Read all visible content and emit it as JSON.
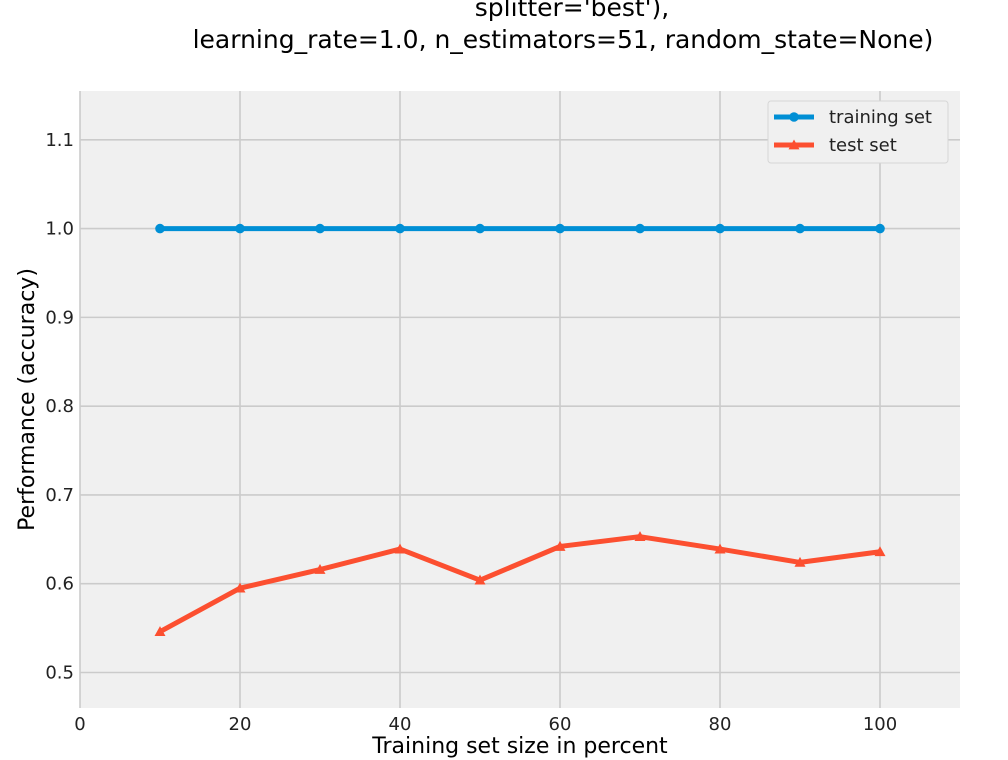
{
  "chart_data": {
    "type": "line",
    "title_lines": [
      "splitter='best'),",
      "learning_rate=1.0, n_estimators=51, random_state=None)"
    ],
    "xlabel": "Training set size in percent",
    "ylabel": "Performance (accuracy)",
    "xlim": [
      0,
      110
    ],
    "ylim": [
      0.46,
      1.155
    ],
    "x_ticks": [
      0,
      20,
      40,
      60,
      80,
      100
    ],
    "y_ticks": [
      0.5,
      0.6,
      0.7,
      0.8,
      0.9,
      1.0,
      1.1
    ],
    "x_tick_labels": [
      "0",
      "20",
      "40",
      "60",
      "80",
      "100"
    ],
    "y_tick_labels": [
      "0.5",
      "0.6",
      "0.7",
      "0.8",
      "0.9",
      "1.0",
      "1.1"
    ],
    "grid": true,
    "legend_position": "top-right",
    "x": [
      10,
      20,
      30,
      40,
      50,
      60,
      70,
      80,
      90,
      100
    ],
    "series": [
      {
        "name": "training set",
        "color": "#008fd5",
        "marker": "circle",
        "values": [
          1.0,
          1.0,
          1.0,
          1.0,
          1.0,
          1.0,
          1.0,
          1.0,
          1.0,
          1.0
        ]
      },
      {
        "name": "test set",
        "color": "#fc4f30",
        "marker": "triangle",
        "values": [
          0.546,
          0.595,
          0.616,
          0.639,
          0.604,
          0.642,
          0.653,
          0.639,
          0.624,
          0.636
        ]
      }
    ],
    "background_color": "#f0f0f0",
    "grid_color": "#cbcbcb"
  }
}
